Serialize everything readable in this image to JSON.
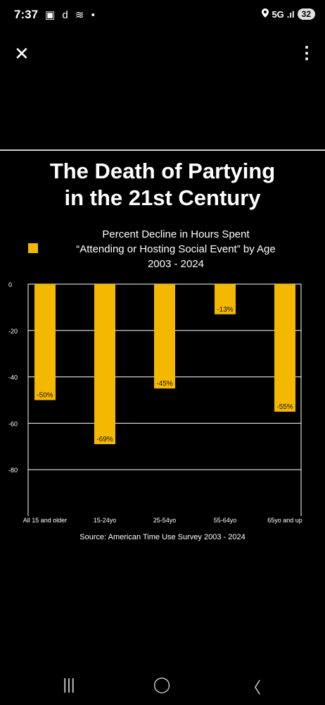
{
  "status_bar": {
    "time": "7:37",
    "left_icons": "▣ d ≋ •",
    "network": "5G",
    "signal": ".ıl",
    "battery": "32"
  },
  "toolbar": {
    "close_icon": "close-icon",
    "more_icon": "more-vertical-icon",
    "close_glyph": "✕",
    "more_glyph": "⋮"
  },
  "chart_title_line1": "The Death of Partying",
  "chart_title_line2": "in the 21st Century",
  "legend_line1": "Percent Decline in Hours Spent",
  "legend_line2": "“Attending or Hosting Social Event” by Age",
  "legend_line3": "2003 - 2024",
  "source": "Source: American Time Use Survey 2003 - 2024",
  "chart_data": {
    "type": "bar",
    "categories": [
      "All 15 and older",
      "15-24yo",
      "25-54yo",
      "55-64yo",
      "65yo and up"
    ],
    "values": [
      -50,
      -69,
      -45,
      -13,
      -55
    ],
    "data_labels": [
      "-50%",
      "-69%",
      "-45%",
      "-13%",
      "-55%"
    ],
    "ylim": [
      -100,
      0
    ],
    "yticks": [
      "0",
      "-20",
      "-40",
      "-60",
      "-80"
    ],
    "ytick_values": [
      0,
      -20,
      -40,
      -60,
      -80
    ],
    "grid": true,
    "bar_color": "#f5b800"
  },
  "nav_bar": {
    "recents_glyph": "|||",
    "home_glyph": "◯",
    "back_glyph": "〈"
  }
}
